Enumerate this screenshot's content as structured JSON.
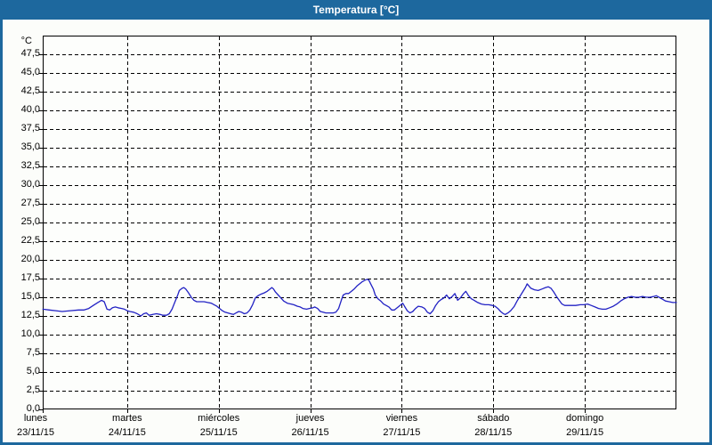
{
  "window": {
    "title": "Temperatura [°C]"
  },
  "colors": {
    "titlebar_bg": "#1d689e",
    "frame_border": "#1d689e",
    "page_bg": "#fcfdfa",
    "plot_bg": "#fdfefc",
    "grid": "#000000",
    "text": "#000000",
    "line": "#2222c4"
  },
  "chart_data": {
    "type": "line",
    "title": "Temperatura [°C]",
    "xlabel": "",
    "ylabel": "°C",
    "grid": "dashed",
    "legend": "none",
    "y_axis": {
      "unit": "°C",
      "min": 0,
      "max": 50,
      "tick_step": 2.5,
      "tick_labels": [
        "0,0",
        "2,5",
        "5,0",
        "7,5",
        "10,0",
        "12,5",
        "15,0",
        "17,5",
        "20,0",
        "22,5",
        "25,0",
        "27,5",
        "30,0",
        "32,5",
        "35,0",
        "37,5",
        "40,0",
        "42,5",
        "45,0",
        "47,5"
      ]
    },
    "x_axis": {
      "span_days": 7,
      "days": [
        {
          "name": "lunes",
          "date": "23/11/15"
        },
        {
          "name": "martes",
          "date": "24/11/15"
        },
        {
          "name": "miércoles",
          "date": "25/11/15"
        },
        {
          "name": "jueves",
          "date": "26/11/15"
        },
        {
          "name": "viernes",
          "date": "27/11/15"
        },
        {
          "name": "sábado",
          "date": "28/11/15"
        },
        {
          "name": "domingo",
          "date": "29/11/15"
        }
      ]
    },
    "series": [
      {
        "name": "Temperatura",
        "color": "#2222c4",
        "points": [
          [
            0.08,
            13.4
          ],
          [
            0.15,
            13.3
          ],
          [
            0.22,
            13.2
          ],
          [
            0.29,
            13.1
          ],
          [
            0.38,
            13.2
          ],
          [
            0.47,
            13.3
          ],
          [
            0.53,
            13.3
          ],
          [
            0.58,
            13.5
          ],
          [
            0.63,
            13.9
          ],
          [
            0.68,
            14.3
          ],
          [
            0.72,
            14.6
          ],
          [
            0.75,
            14.4
          ],
          [
            0.78,
            13.4
          ],
          [
            0.81,
            13.3
          ],
          [
            0.84,
            13.6
          ],
          [
            0.87,
            13.7
          ],
          [
            0.9,
            13.6
          ],
          [
            0.94,
            13.5
          ],
          [
            0.97,
            13.4
          ],
          [
            1.0,
            13.2
          ],
          [
            1.03,
            13.1
          ],
          [
            1.07,
            13.0
          ],
          [
            1.11,
            12.8
          ],
          [
            1.15,
            12.5
          ],
          [
            1.18,
            12.8
          ],
          [
            1.21,
            12.9
          ],
          [
            1.24,
            12.6
          ],
          [
            1.28,
            12.7
          ],
          [
            1.32,
            12.8
          ],
          [
            1.36,
            12.7
          ],
          [
            1.39,
            12.6
          ],
          [
            1.43,
            12.6
          ],
          [
            1.46,
            12.8
          ],
          [
            1.49,
            13.4
          ],
          [
            1.52,
            14.3
          ],
          [
            1.55,
            15.2
          ],
          [
            1.57,
            15.9
          ],
          [
            1.6,
            16.2
          ],
          [
            1.62,
            16.3
          ],
          [
            1.64,
            16.1
          ],
          [
            1.67,
            15.6
          ],
          [
            1.7,
            15.0
          ],
          [
            1.73,
            14.6
          ],
          [
            1.76,
            14.4
          ],
          [
            1.8,
            14.4
          ],
          [
            1.84,
            14.4
          ],
          [
            1.88,
            14.3
          ],
          [
            1.92,
            14.2
          ],
          [
            1.95,
            14.0
          ],
          [
            1.98,
            13.8
          ],
          [
            2.01,
            13.5
          ],
          [
            2.04,
            13.2
          ],
          [
            2.07,
            13.0
          ],
          [
            2.1,
            12.9
          ],
          [
            2.13,
            12.8
          ],
          [
            2.16,
            12.7
          ],
          [
            2.19,
            12.9
          ],
          [
            2.22,
            13.1
          ],
          [
            2.25,
            13.0
          ],
          [
            2.28,
            12.8
          ],
          [
            2.31,
            12.9
          ],
          [
            2.34,
            13.3
          ],
          [
            2.37,
            14.0
          ],
          [
            2.4,
            14.9
          ],
          [
            2.43,
            15.2
          ],
          [
            2.46,
            15.4
          ],
          [
            2.5,
            15.6
          ],
          [
            2.53,
            15.8
          ],
          [
            2.55,
            16.0
          ],
          [
            2.58,
            16.3
          ],
          [
            2.6,
            16.1
          ],
          [
            2.62,
            15.7
          ],
          [
            2.65,
            15.3
          ],
          [
            2.68,
            14.9
          ],
          [
            2.71,
            14.5
          ],
          [
            2.75,
            14.2
          ],
          [
            2.79,
            14.1
          ],
          [
            2.82,
            14.0
          ],
          [
            2.86,
            13.8
          ],
          [
            2.89,
            13.7
          ],
          [
            2.92,
            13.5
          ],
          [
            2.96,
            13.4
          ],
          [
            2.99,
            13.5
          ],
          [
            3.03,
            13.6
          ],
          [
            3.05,
            13.7
          ],
          [
            3.08,
            13.5
          ],
          [
            3.11,
            13.1
          ],
          [
            3.14,
            13.0
          ],
          [
            3.17,
            12.9
          ],
          [
            3.21,
            12.9
          ],
          [
            3.25,
            12.9
          ],
          [
            3.28,
            13.0
          ],
          [
            3.31,
            13.5
          ],
          [
            3.34,
            14.6
          ],
          [
            3.36,
            15.3
          ],
          [
            3.39,
            15.5
          ],
          [
            3.42,
            15.5
          ],
          [
            3.45,
            15.8
          ],
          [
            3.48,
            16.1
          ],
          [
            3.51,
            16.5
          ],
          [
            3.54,
            16.8
          ],
          [
            3.57,
            17.1
          ],
          [
            3.6,
            17.3
          ],
          [
            3.62,
            17.4
          ],
          [
            3.64,
            17.3
          ],
          [
            3.66,
            16.8
          ],
          [
            3.69,
            16.1
          ],
          [
            3.71,
            15.3
          ],
          [
            3.74,
            14.8
          ],
          [
            3.77,
            14.5
          ],
          [
            3.8,
            14.1
          ],
          [
            3.83,
            13.9
          ],
          [
            3.86,
            13.7
          ],
          [
            3.89,
            13.3
          ],
          [
            3.92,
            13.3
          ],
          [
            3.95,
            13.6
          ],
          [
            3.98,
            13.9
          ],
          [
            4.01,
            14.2
          ],
          [
            4.03,
            13.8
          ],
          [
            4.06,
            13.2
          ],
          [
            4.09,
            12.9
          ],
          [
            4.12,
            13.1
          ],
          [
            4.15,
            13.5
          ],
          [
            4.18,
            13.8
          ],
          [
            4.22,
            13.7
          ],
          [
            4.25,
            13.5
          ],
          [
            4.28,
            13.0
          ],
          [
            4.31,
            12.8
          ],
          [
            4.34,
            13.2
          ],
          [
            4.37,
            13.9
          ],
          [
            4.4,
            14.4
          ],
          [
            4.43,
            14.7
          ],
          [
            4.46,
            14.9
          ],
          [
            4.49,
            15.3
          ],
          [
            4.52,
            14.8
          ],
          [
            4.55,
            15.1
          ],
          [
            4.58,
            15.5
          ],
          [
            4.61,
            14.6
          ],
          [
            4.64,
            14.9
          ],
          [
            4.67,
            15.4
          ],
          [
            4.7,
            15.8
          ],
          [
            4.73,
            15.2
          ],
          [
            4.76,
            14.8
          ],
          [
            4.79,
            14.6
          ],
          [
            4.83,
            14.3
          ],
          [
            4.87,
            14.1
          ],
          [
            4.91,
            14.0
          ],
          [
            4.95,
            14.0
          ],
          [
            4.99,
            13.9
          ],
          [
            5.02,
            13.8
          ],
          [
            5.05,
            13.5
          ],
          [
            5.08,
            13.1
          ],
          [
            5.11,
            12.8
          ],
          [
            5.13,
            12.7
          ],
          [
            5.16,
            12.9
          ],
          [
            5.19,
            13.2
          ],
          [
            5.23,
            13.8
          ],
          [
            5.26,
            14.5
          ],
          [
            5.29,
            15.1
          ],
          [
            5.32,
            15.7
          ],
          [
            5.35,
            16.3
          ],
          [
            5.37,
            16.8
          ],
          [
            5.39,
            16.5
          ],
          [
            5.41,
            16.2
          ],
          [
            5.45,
            16.0
          ],
          [
            5.49,
            15.9
          ],
          [
            5.53,
            16.1
          ],
          [
            5.57,
            16.3
          ],
          [
            5.6,
            16.4
          ],
          [
            5.63,
            16.2
          ],
          [
            5.66,
            15.7
          ],
          [
            5.69,
            15.1
          ],
          [
            5.72,
            14.6
          ],
          [
            5.75,
            14.1
          ],
          [
            5.78,
            13.9
          ],
          [
            5.82,
            13.9
          ],
          [
            5.86,
            13.9
          ],
          [
            5.9,
            13.9
          ],
          [
            5.95,
            14.0
          ],
          [
            5.99,
            14.0
          ],
          [
            6.03,
            14.1
          ],
          [
            6.07,
            13.9
          ],
          [
            6.11,
            13.7
          ],
          [
            6.15,
            13.5
          ],
          [
            6.19,
            13.4
          ],
          [
            6.23,
            13.4
          ],
          [
            6.27,
            13.6
          ],
          [
            6.31,
            13.8
          ],
          [
            6.35,
            14.1
          ],
          [
            6.39,
            14.5
          ],
          [
            6.43,
            14.8
          ],
          [
            6.47,
            15.0
          ],
          [
            6.51,
            15.1
          ],
          [
            6.55,
            15.0
          ],
          [
            6.59,
            15.0
          ],
          [
            6.63,
            15.1
          ],
          [
            6.67,
            15.0
          ],
          [
            6.71,
            15.0
          ],
          [
            6.75,
            15.1
          ],
          [
            6.78,
            15.2
          ],
          [
            6.81,
            15.0
          ],
          [
            6.84,
            14.8
          ],
          [
            6.88,
            14.5
          ],
          [
            6.92,
            14.4
          ],
          [
            6.96,
            14.3
          ],
          [
            7.0,
            14.3
          ]
        ]
      }
    ]
  }
}
